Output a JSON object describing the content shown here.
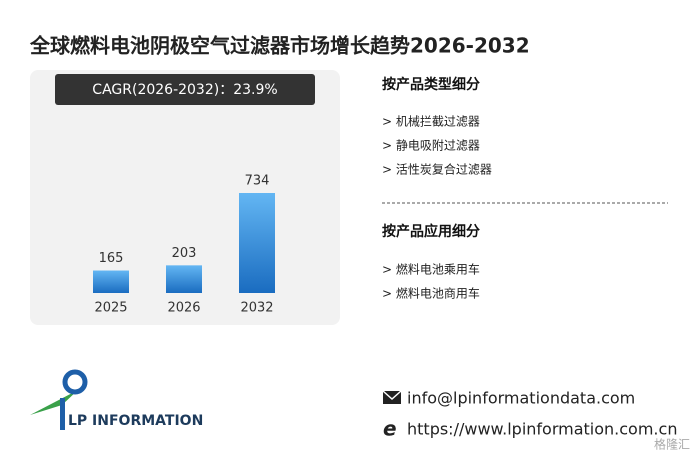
{
  "chart_data": {
    "type": "bar",
    "title": "全球燃料电池阴极空气过滤器市场增长趋势2026-2032",
    "annotation": "CAGR(2026-2032)：23.9%",
    "categories": [
      "2025",
      "2026",
      "2032"
    ],
    "values": [
      165,
      203,
      734
    ],
    "color": "#2f86d6"
  },
  "segments": [
    {
      "title": "按产品类型细分",
      "items": [
        "> 机械拦截过滤器",
        "> 静电吸附过滤器",
        "> 活性炭复合过滤器"
      ]
    },
    {
      "title": "按产品应用细分",
      "items": [
        "> 燃料电池乘用车",
        "> 燃料电池商用车"
      ]
    }
  ],
  "logo": "LP INFORMATION",
  "contact": {
    "email": "info@lpinformationdata.com",
    "website": "https://www.lpinformation.com.cn"
  },
  "watermark": "格隆汇"
}
